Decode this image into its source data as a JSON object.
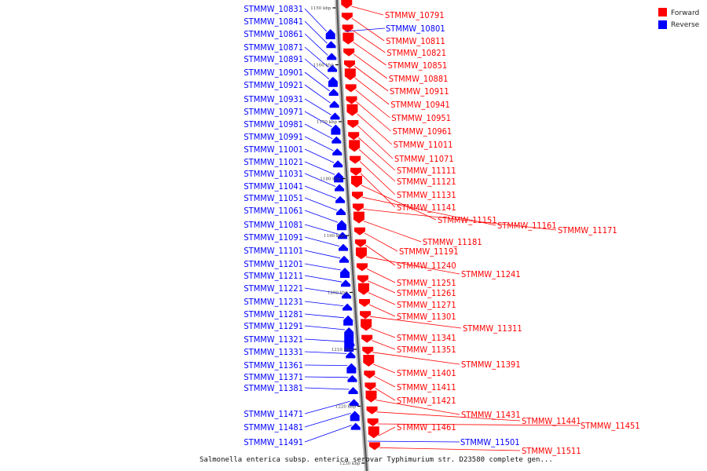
{
  "legend": {
    "forward_label": "Forward",
    "reverse_label": "Reverse",
    "forward_color": "#ff0000",
    "reverse_color": "#0000ff"
  },
  "caption": "Salmonella enterica subsp. enterica serovar Typhimurium str. D23580 complete gen...",
  "ticks": [
    "1150 kbp",
    "1160 kbp",
    "1170 kbp",
    "1180 kbp",
    "1190 kbp",
    "1200 kbp",
    "1210 kbp",
    "1220 kbp",
    "1230 kbp"
  ],
  "reverse_genes": [
    "STMMW_10831",
    "STMMW_10841",
    "STMMW_10861",
    "STMMW_10871",
    "STMMW_10891",
    "STMMW_10901",
    "STMMW_10921",
    "STMMW_10931",
    "STMMW_10971",
    "STMMW_10981",
    "STMMW_10991",
    "STMMW_11001",
    "STMMW_11021",
    "STMMW_11031",
    "STMMW_11041",
    "STMMW_11051",
    "STMMW_11061",
    "STMMW_11081",
    "STMMW_11091",
    "STMMW_11101",
    "STMMW_11201",
    "STMMW_11211",
    "STMMW_11221",
    "STMMW_11231",
    "STMMW_11281",
    "STMMW_11291",
    "STMMW_11321",
    "STMMW_11331",
    "STMMW_11361",
    "STMMW_11371",
    "STMMW_11381",
    "STMMW_11471",
    "STMMW_11481",
    "STMMW_11491",
    "STMMW_11501"
  ],
  "forward_genes": [
    "STMMW_10791",
    "STMMW_10811",
    "STMMW_10821",
    "STMMW_10851",
    "STMMW_10881",
    "STMMW_10911",
    "STMMW_10941",
    "STMMW_10951",
    "STMMW_10961",
    "STMMW_11011",
    "STMMW_11071",
    "STMMW_11111",
    "STMMW_11121",
    "STMMW_11131",
    "STMMW_11141",
    "STMMW_11151",
    "STMMW_11161",
    "STMMW_11171",
    "STMMW_11181",
    "STMMW_11191",
    "STMMW_11240",
    "STMMW_11241",
    "STMMW_11251",
    "STMMW_11261",
    "STMMW_11271",
    "STMMW_11301",
    "STMMW_11311",
    "STMMW_11341",
    "STMMW_11351",
    "STMMW_11391",
    "STMMW_11401",
    "STMMW_11411",
    "STMMW_11421",
    "STMMW_11431",
    "STMMW_11441",
    "STMMW_11451",
    "STMMW_11461",
    "STMMW_11511"
  ],
  "extra_reverse_right": [
    "STMMW_10801"
  ]
}
